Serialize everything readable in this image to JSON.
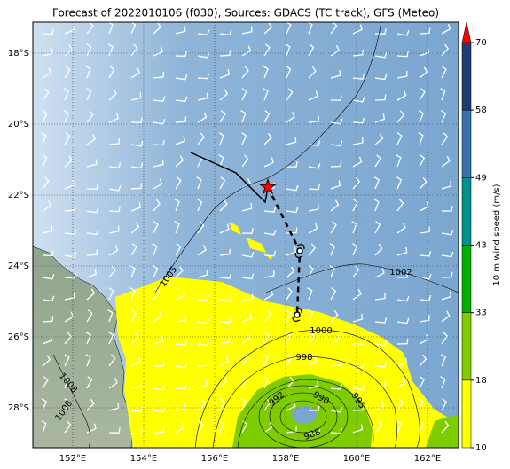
{
  "chart_data": {
    "type": "map",
    "title": "Forecast of 2022010106 (f030), Sources: GDACS (TC track), GFS (Meteo)",
    "xlim": [
      150.875,
      162.875
    ],
    "ylim": [
      -29.125,
      -17.125
    ],
    "xticks": [
      {
        "value": 152,
        "label": "152°E"
      },
      {
        "value": 154,
        "label": "154°E"
      },
      {
        "value": 156,
        "label": "156°E"
      },
      {
        "value": 158,
        "label": "158°E"
      },
      {
        "value": 160,
        "label": "160°E"
      },
      {
        "value": 162,
        "label": "162°E"
      }
    ],
    "yticks": [
      {
        "value": -18,
        "label": "18°S"
      },
      {
        "value": -20,
        "label": "20°S"
      },
      {
        "value": -22,
        "label": "22°S"
      },
      {
        "value": -24,
        "label": "24°S"
      },
      {
        "value": -26,
        "label": "26°S"
      },
      {
        "value": -28,
        "label": "28°S"
      }
    ],
    "grid": true,
    "track": {
      "color": "#000000",
      "current_color": "#ff0000",
      "observed": {
        "x": [
          155.325,
          156.6,
          157.425,
          157.5
        ],
        "y": [
          -20.8,
          -21.375,
          -22.2,
          -21.775
        ]
      },
      "forecast": {
        "x": [
          157.5,
          158.4,
          158.325
        ],
        "y": [
          -21.775,
          -23.575,
          -25.375
        ]
      }
    },
    "isobar_labels": [
      1005,
      1002,
      1000,
      998,
      995,
      992,
      990,
      988,
      1008,
      1008
    ],
    "colorbar": {
      "label": "10 m wind speed (m/s)",
      "bounds": [
        10,
        18,
        33,
        43,
        49,
        58,
        70
      ],
      "colors": [
        "#ffff00",
        "#7fcc00",
        "#00b000",
        "#008f8f",
        "#3b72ad",
        "#1f3c73"
      ],
      "extend_color": "#ff0000"
    }
  }
}
